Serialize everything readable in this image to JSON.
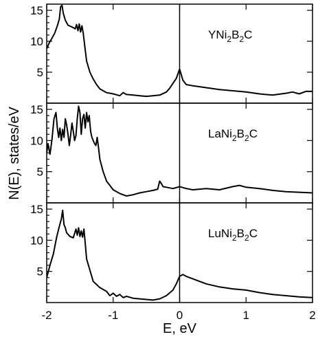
{
  "chart_data": {
    "type": "line",
    "xlabel": "E, eV",
    "ylabel": "N(E), states/eV",
    "xlim": [
      -2,
      2
    ],
    "x_ticks": [
      -2,
      -1,
      0,
      1,
      2
    ],
    "x_tick_labels": [
      "-2",
      "-1",
      "0",
      "1",
      "2"
    ],
    "grid": false,
    "fermi_line_x": 0,
    "panels": [
      {
        "label_parts": [
          "YNi",
          "2",
          "B",
          "2",
          "C"
        ],
        "ylim": [
          0,
          16
        ],
        "y_ticks": [
          5,
          10,
          15
        ],
        "y_tick_labels": [
          "5",
          "10",
          "15"
        ],
        "series": [
          {
            "x": [
              -2.0,
              -1.96,
              -1.92,
              -1.88,
              -1.84,
              -1.81,
              -1.79,
              -1.77,
              -1.75,
              -1.72,
              -1.68,
              -1.64,
              -1.6,
              -1.57,
              -1.55,
              -1.53,
              -1.51,
              -1.49,
              -1.47,
              -1.45,
              -1.43,
              -1.4,
              -1.35,
              -1.3,
              -1.25,
              -1.2,
              -1.1,
              -1.0,
              -0.9,
              -0.85,
              -0.8,
              -0.7,
              -0.6,
              -0.5,
              -0.4,
              -0.3,
              -0.2,
              -0.15,
              -0.1,
              -0.05,
              0.0,
              0.02,
              0.05,
              0.1,
              0.2,
              0.4,
              0.6,
              0.8,
              1.0,
              1.2,
              1.4,
              1.6,
              1.7,
              1.8,
              1.9,
              2.0
            ],
            "y": [
              8.8,
              9.8,
              10.5,
              11.3,
              12.5,
              13.6,
              15.6,
              15.8,
              14.5,
              13.4,
              12.6,
              12.4,
              12.2,
              12.0,
              12.7,
              11.7,
              12.8,
              11.5,
              12.5,
              11.3,
              9.5,
              6.8,
              5.0,
              3.9,
              3.0,
              2.3,
              1.7,
              1.5,
              1.2,
              1.7,
              1.4,
              1.3,
              1.2,
              1.1,
              1.2,
              1.3,
              1.8,
              2.4,
              3.2,
              4.0,
              5.5,
              4.8,
              3.7,
              3.0,
              2.8,
              2.5,
              2.2,
              2.0,
              1.8,
              1.5,
              1.3,
              1.6,
              1.8,
              1.5,
              1.9,
              1.9
            ]
          }
        ]
      },
      {
        "label_parts": [
          "LaNi",
          "2",
          "B",
          "2",
          "C"
        ],
        "ylim": [
          0,
          16
        ],
        "y_ticks": [
          5,
          10,
          15
        ],
        "y_tick_labels": [
          "5",
          "10",
          "15"
        ],
        "series": [
          {
            "x": [
              -2.0,
              -1.98,
              -1.95,
              -1.92,
              -1.89,
              -1.86,
              -1.84,
              -1.82,
              -1.8,
              -1.78,
              -1.76,
              -1.74,
              -1.72,
              -1.7,
              -1.68,
              -1.66,
              -1.64,
              -1.62,
              -1.6,
              -1.58,
              -1.56,
              -1.54,
              -1.52,
              -1.5,
              -1.48,
              -1.46,
              -1.44,
              -1.42,
              -1.4,
              -1.38,
              -1.36,
              -1.34,
              -1.32,
              -1.3,
              -1.28,
              -1.26,
              -1.24,
              -1.22,
              -1.2,
              -1.15,
              -1.1,
              -1.0,
              -0.9,
              -0.8,
              -0.7,
              -0.6,
              -0.5,
              -0.4,
              -0.33,
              -0.3,
              -0.27,
              -0.25,
              -0.2,
              -0.1,
              0.0,
              0.1,
              0.2,
              0.4,
              0.6,
              0.8,
              0.9,
              1.0,
              1.2,
              1.4,
              1.6,
              1.8,
              2.0
            ],
            "y": [
              8.0,
              9.5,
              7.8,
              10.2,
              13.5,
              14.5,
              12.0,
              10.5,
              12.0,
              10.0,
              11.8,
              10.5,
              13.5,
              12.5,
              11.0,
              9.2,
              10.8,
              12.8,
              11.5,
              10.0,
              10.8,
              13.5,
              15.5,
              14.5,
              11.0,
              13.5,
              14.2,
              12.0,
              14.5,
              13.0,
              14.0,
              11.5,
              10.5,
              10.0,
              9.5,
              9.2,
              10.5,
              8.8,
              7.0,
              5.0,
              3.5,
              2.1,
              1.5,
              1.1,
              1.3,
              1.6,
              1.8,
              2.0,
              2.2,
              3.5,
              3.0,
              2.6,
              2.5,
              2.3,
              2.6,
              2.3,
              2.1,
              2.3,
              2.1,
              2.6,
              2.8,
              2.5,
              2.3,
              2.0,
              1.8,
              1.7,
              1.6
            ]
          }
        ]
      },
      {
        "label_parts": [
          "LuNi",
          "2",
          "B",
          "2",
          "C"
        ],
        "ylim": [
          0,
          16
        ],
        "y_ticks": [
          5,
          10,
          15
        ],
        "y_tick_labels": [
          "5",
          "10",
          "15"
        ],
        "series": [
          {
            "x": [
              -2.0,
              -1.95,
              -1.9,
              -1.85,
              -1.82,
              -1.8,
              -1.78,
              -1.76,
              -1.74,
              -1.72,
              -1.7,
              -1.65,
              -1.6,
              -1.56,
              -1.54,
              -1.52,
              -1.5,
              -1.48,
              -1.46,
              -1.44,
              -1.42,
              -1.4,
              -1.35,
              -1.3,
              -1.2,
              -1.1,
              -1.05,
              -1.0,
              -0.95,
              -0.9,
              -0.85,
              -0.8,
              -0.7,
              -0.6,
              -0.5,
              -0.4,
              -0.3,
              -0.2,
              -0.1,
              -0.05,
              0.0,
              0.05,
              0.1,
              0.2,
              0.4,
              0.6,
              0.8,
              1.0,
              1.2,
              1.4,
              1.6,
              1.8,
              2.0
            ],
            "y": [
              4.0,
              6.0,
              7.8,
              10.5,
              11.8,
              12.6,
              13.4,
              14.8,
              12.5,
              12.0,
              11.2,
              10.6,
              10.4,
              11.8,
              10.8,
              12.0,
              10.6,
              11.5,
              10.5,
              11.8,
              9.5,
              7.0,
              5.2,
              3.4,
              2.4,
              1.8,
              1.1,
              1.5,
              1.0,
              1.3,
              0.8,
              1.0,
              0.7,
              0.6,
              0.5,
              0.4,
              0.6,
              1.1,
              2.0,
              3.0,
              4.2,
              4.5,
              4.2,
              3.8,
              3.0,
              2.5,
              2.2,
              2.0,
              1.6,
              1.3,
              1.1,
              0.9,
              0.8
            ]
          }
        ]
      }
    ]
  }
}
